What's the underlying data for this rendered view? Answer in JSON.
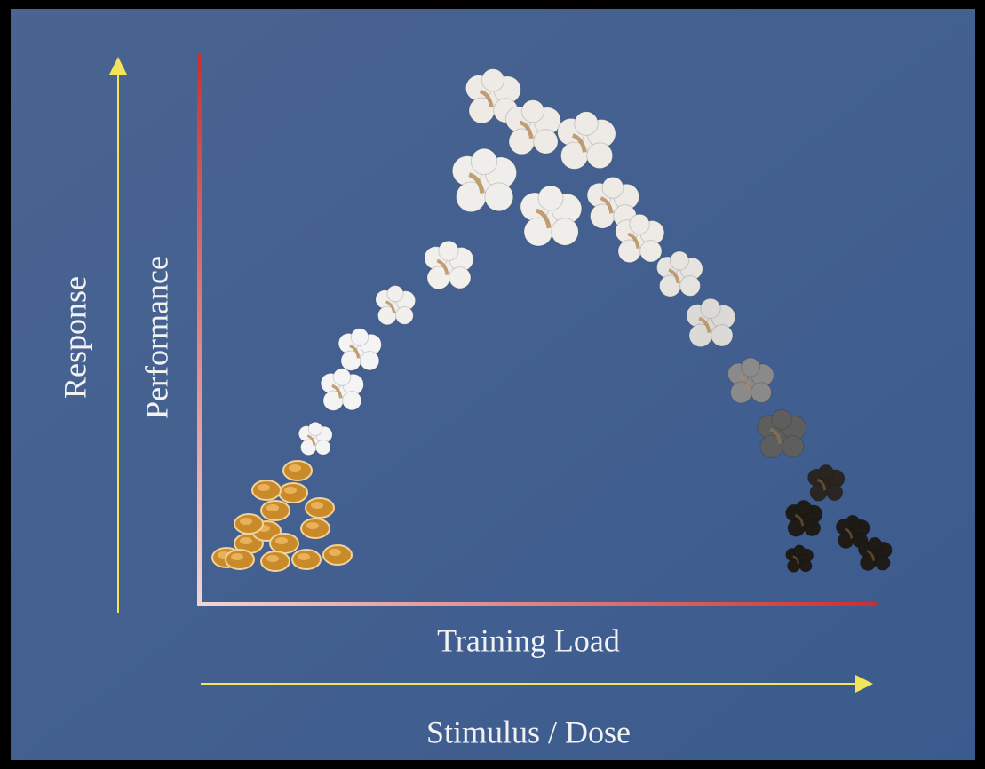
{
  "labels": {
    "outer_y": "Response",
    "inner_y": "Performance",
    "inner_x": "Training Load",
    "outer_x": "Stimulus / Dose"
  }
}
